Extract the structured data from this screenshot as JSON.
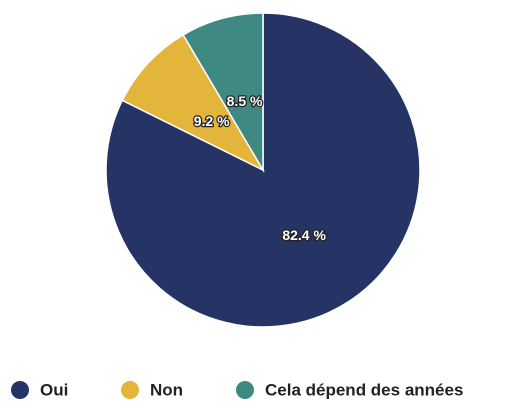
{
  "chart_data": {
    "type": "pie",
    "categories": [
      "Oui",
      "Non",
      "Cela dépend des années"
    ],
    "values": [
      82.4,
      9.2,
      8.5
    ],
    "value_labels": [
      "82.4 %",
      "9.2 %",
      "8.5 %"
    ],
    "colors": [
      "#253465",
      "#e3b53a",
      "#3e8a83"
    ],
    "legend": "bottom"
  }
}
